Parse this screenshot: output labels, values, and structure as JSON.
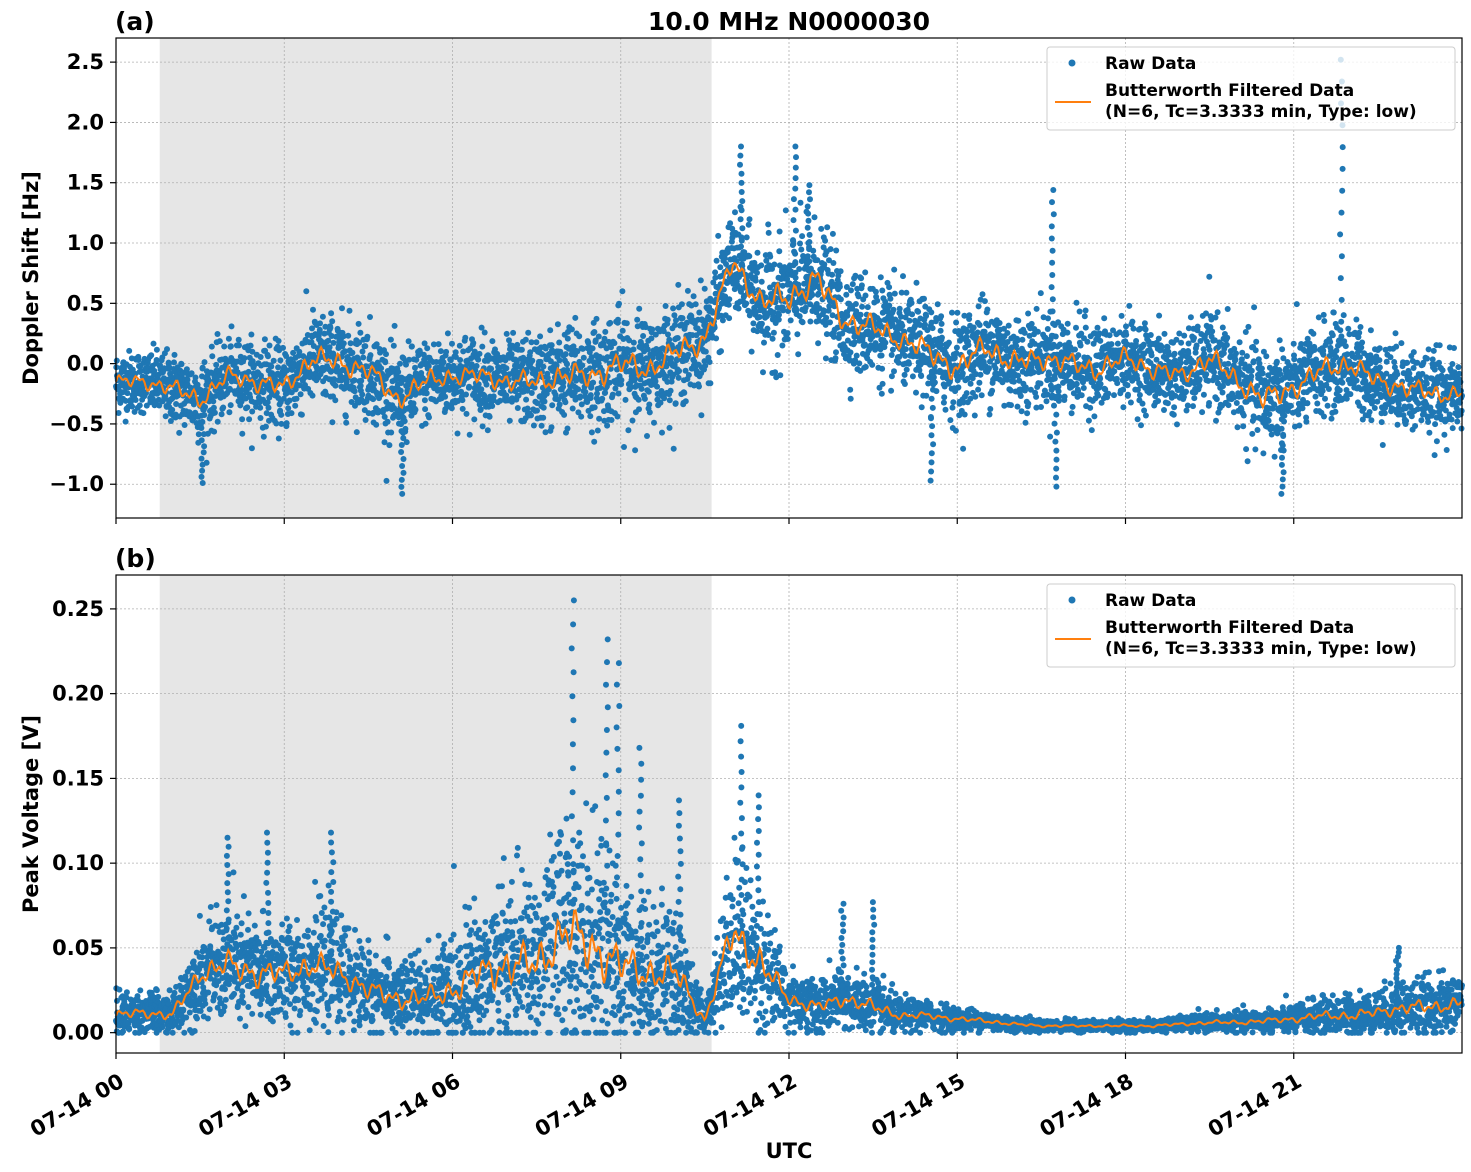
{
  "figure": {
    "title": "10.0 MHz N0000030",
    "xlabel": "UTC"
  },
  "legend": {
    "raw_label": "Raw Data",
    "filtered_label_line1": "Butterworth Filtered Data",
    "filtered_label_line2": "(N=6, Tc=3.3333 min, Type: low)"
  },
  "colors": {
    "raw": "#1f77b4",
    "filtered": "#ff7f0e",
    "night_shade": "#e6e6e6",
    "grid": "#b0b0b0"
  },
  "chart_data": [
    {
      "type": "scatter",
      "panel_label": "(a)",
      "title": "10.0 MHz N0000030",
      "ylabel": "Doppler Shift [Hz]",
      "xlabel": "",
      "x_unit": "hours UTC on 07-14",
      "xlim": [
        0,
        24
      ],
      "ylim": [
        -1.28,
        2.7
      ],
      "yticks": [
        -1.0,
        -0.5,
        0.0,
        0.5,
        1.0,
        1.5,
        2.0,
        2.5
      ],
      "ytick_labels": [
        "−1.0",
        "−0.5",
        "0.0",
        "0.5",
        "1.0",
        "1.5",
        "2.0",
        "2.5"
      ],
      "xticks": [
        0,
        3,
        6,
        9,
        12,
        15,
        18,
        21
      ],
      "show_xtick_labels": false,
      "grid": true,
      "legend_position": "top-right",
      "shaded_span_hours": [
        0.78,
        10.62
      ],
      "series": [
        {
          "name": "Raw Data",
          "style": "points",
          "x": [
            0.0,
            0.5,
            1.0,
            1.5,
            2.0,
            2.5,
            3.0,
            3.5,
            4.0,
            4.5,
            5.0,
            5.5,
            6.0,
            6.5,
            7.0,
            7.5,
            8.0,
            8.5,
            9.0,
            9.5,
            10.0,
            10.5,
            11.0,
            11.5,
            12.0,
            12.5,
            13.0,
            13.5,
            14.0,
            14.5,
            15.0,
            15.5,
            16.0,
            16.5,
            17.0,
            17.5,
            18.0,
            18.5,
            19.0,
            19.5,
            20.0,
            20.5,
            21.0,
            21.5,
            22.0,
            22.5,
            23.0,
            23.5,
            24.0
          ],
          "y_center": [
            -0.15,
            -0.15,
            -0.2,
            -0.3,
            -0.1,
            -0.15,
            -0.2,
            0.05,
            0.0,
            -0.05,
            -0.3,
            -0.15,
            -0.1,
            -0.1,
            -0.15,
            -0.15,
            -0.1,
            -0.1,
            0.0,
            -0.05,
            0.1,
            0.2,
            0.85,
            0.5,
            0.55,
            0.7,
            0.35,
            0.3,
            0.2,
            0.1,
            -0.05,
            0.15,
            0.0,
            0.05,
            0.0,
            -0.05,
            0.05,
            -0.05,
            -0.1,
            0.05,
            -0.15,
            -0.3,
            -0.2,
            -0.05,
            0.0,
            -0.15,
            -0.2,
            -0.25,
            -0.25
          ],
          "y_spread": [
            0.3,
            0.3,
            0.35,
            0.4,
            0.35,
            0.4,
            0.4,
            0.45,
            0.45,
            0.45,
            0.45,
            0.4,
            0.4,
            0.4,
            0.4,
            0.45,
            0.5,
            0.5,
            0.55,
            0.5,
            0.5,
            0.5,
            0.45,
            0.55,
            0.6,
            0.55,
            0.5,
            0.5,
            0.45,
            0.5,
            0.5,
            0.5,
            0.5,
            0.45,
            0.45,
            0.45,
            0.4,
            0.4,
            0.4,
            0.45,
            0.45,
            0.55,
            0.45,
            0.45,
            0.45,
            0.4,
            0.4,
            0.4,
            0.35
          ],
          "extremes": [
            [
              1.55,
              -0.99
            ],
            [
              5.1,
              -1.08
            ],
            [
              14.55,
              -0.97
            ],
            [
              16.7,
              1.44
            ],
            [
              16.75,
              -1.02
            ],
            [
              20.8,
              -1.08
            ],
            [
              21.85,
              2.52
            ],
            [
              11.15,
              1.8
            ],
            [
              12.1,
              1.8
            ],
            [
              12.35,
              1.48
            ]
          ]
        },
        {
          "name": "Butterworth Filtered Data (N=6, Tc=3.3333 min, Type: low)",
          "style": "line",
          "x": [
            0.0,
            0.5,
            1.0,
            1.5,
            2.0,
            2.5,
            3.0,
            3.5,
            4.0,
            4.5,
            5.0,
            5.5,
            6.0,
            6.5,
            7.0,
            7.5,
            8.0,
            8.5,
            9.0,
            9.5,
            10.0,
            10.5,
            11.0,
            11.5,
            12.0,
            12.5,
            13.0,
            13.5,
            14.0,
            14.5,
            15.0,
            15.5,
            16.0,
            16.5,
            17.0,
            17.5,
            18.0,
            18.5,
            19.0,
            19.5,
            20.0,
            20.5,
            21.0,
            21.5,
            22.0,
            22.5,
            23.0,
            23.5,
            24.0
          ],
          "y": [
            -0.15,
            -0.15,
            -0.2,
            -0.3,
            -0.1,
            -0.15,
            -0.2,
            0.05,
            0.0,
            -0.05,
            -0.3,
            -0.15,
            -0.1,
            -0.1,
            -0.15,
            -0.15,
            -0.1,
            -0.1,
            0.0,
            -0.05,
            0.1,
            0.2,
            0.85,
            0.5,
            0.55,
            0.7,
            0.35,
            0.3,
            0.2,
            0.1,
            -0.05,
            0.15,
            0.0,
            0.05,
            0.0,
            -0.05,
            0.05,
            -0.05,
            -0.1,
            0.05,
            -0.15,
            -0.3,
            -0.2,
            -0.05,
            0.0,
            -0.15,
            -0.2,
            -0.25,
            -0.25
          ]
        }
      ]
    },
    {
      "type": "scatter",
      "panel_label": "(b)",
      "title": "",
      "ylabel": "Peak Voltage [V]",
      "xlabel": "UTC",
      "x_unit": "hours UTC on 07-14",
      "xlim": [
        0,
        24
      ],
      "ylim": [
        -0.012,
        0.27
      ],
      "yticks": [
        0.0,
        0.05,
        0.1,
        0.15,
        0.2,
        0.25
      ],
      "ytick_labels": [
        "0.00",
        "0.05",
        "0.10",
        "0.15",
        "0.20",
        "0.25"
      ],
      "xticks": [
        0,
        3,
        6,
        9,
        12,
        15,
        18,
        21
      ],
      "xtick_labels": [
        "07-14 00",
        "07-14 03",
        "07-14 06",
        "07-14 09",
        "07-14 12",
        "07-14 15",
        "07-14 18",
        "07-14 21"
      ],
      "show_xtick_labels": true,
      "grid": true,
      "legend_position": "top-right",
      "shaded_span_hours": [
        0.78,
        10.62
      ],
      "series": [
        {
          "name": "Raw Data",
          "style": "points",
          "x": [
            0.0,
            0.5,
            1.0,
            1.5,
            2.0,
            2.5,
            3.0,
            3.5,
            4.0,
            4.5,
            5.0,
            5.5,
            6.0,
            6.5,
            7.0,
            7.5,
            8.0,
            8.5,
            9.0,
            9.5,
            10.0,
            10.5,
            11.0,
            11.5,
            12.0,
            12.5,
            13.0,
            13.5,
            14.0,
            14.5,
            15.0,
            15.5,
            16.0,
            16.5,
            17.0,
            17.5,
            18.0,
            18.5,
            19.0,
            19.5,
            20.0,
            20.5,
            21.0,
            21.5,
            22.0,
            22.5,
            23.0,
            23.5,
            24.0
          ],
          "y_center": [
            0.01,
            0.012,
            0.01,
            0.035,
            0.04,
            0.035,
            0.035,
            0.04,
            0.035,
            0.025,
            0.02,
            0.02,
            0.025,
            0.035,
            0.04,
            0.04,
            0.06,
            0.05,
            0.04,
            0.035,
            0.035,
            0.007,
            0.06,
            0.04,
            0.02,
            0.015,
            0.02,
            0.015,
            0.01,
            0.01,
            0.008,
            0.007,
            0.005,
            0.004,
            0.004,
            0.004,
            0.004,
            0.004,
            0.005,
            0.006,
            0.006,
            0.007,
            0.008,
            0.01,
            0.01,
            0.012,
            0.015,
            0.015,
            0.018
          ],
          "y_spread": [
            0.015,
            0.015,
            0.015,
            0.03,
            0.04,
            0.04,
            0.035,
            0.04,
            0.035,
            0.03,
            0.03,
            0.03,
            0.04,
            0.05,
            0.06,
            0.06,
            0.08,
            0.08,
            0.06,
            0.05,
            0.05,
            0.008,
            0.06,
            0.05,
            0.02,
            0.02,
            0.02,
            0.02,
            0.012,
            0.01,
            0.008,
            0.007,
            0.005,
            0.004,
            0.004,
            0.004,
            0.004,
            0.004,
            0.005,
            0.006,
            0.007,
            0.008,
            0.01,
            0.012,
            0.015,
            0.015,
            0.02,
            0.02,
            0.02
          ],
          "extremes": [
            [
              8.15,
              0.255
            ],
            [
              8.75,
              0.232
            ],
            [
              8.95,
              0.218
            ],
            [
              9.35,
              0.168
            ],
            [
              10.05,
              0.137
            ],
            [
              11.15,
              0.181
            ],
            [
              11.45,
              0.14
            ],
            [
              12.95,
              0.076
            ],
            [
              13.5,
              0.077
            ],
            [
              2.0,
              0.115
            ],
            [
              2.7,
              0.118
            ],
            [
              3.85,
              0.118
            ],
            [
              22.85,
              0.05
            ]
          ]
        },
        {
          "name": "Butterworth Filtered Data (N=6, Tc=3.3333 min, Type: low)",
          "style": "line",
          "x": [
            0.0,
            0.5,
            1.0,
            1.5,
            2.0,
            2.5,
            3.0,
            3.5,
            4.0,
            4.5,
            5.0,
            5.5,
            6.0,
            6.5,
            7.0,
            7.5,
            8.0,
            8.5,
            9.0,
            9.5,
            10.0,
            10.5,
            11.0,
            11.5,
            12.0,
            12.5,
            13.0,
            13.5,
            14.0,
            14.5,
            15.0,
            15.5,
            16.0,
            16.5,
            17.0,
            17.5,
            18.0,
            18.5,
            19.0,
            19.5,
            20.0,
            20.5,
            21.0,
            21.5,
            22.0,
            22.5,
            23.0,
            23.5,
            24.0
          ],
          "y": [
            0.01,
            0.012,
            0.01,
            0.035,
            0.04,
            0.035,
            0.035,
            0.04,
            0.035,
            0.025,
            0.02,
            0.02,
            0.025,
            0.035,
            0.04,
            0.04,
            0.06,
            0.05,
            0.04,
            0.035,
            0.035,
            0.007,
            0.06,
            0.04,
            0.02,
            0.015,
            0.02,
            0.015,
            0.01,
            0.01,
            0.008,
            0.007,
            0.005,
            0.004,
            0.004,
            0.004,
            0.004,
            0.004,
            0.005,
            0.006,
            0.006,
            0.007,
            0.008,
            0.01,
            0.01,
            0.012,
            0.015,
            0.015,
            0.018
          ]
        }
      ]
    }
  ]
}
